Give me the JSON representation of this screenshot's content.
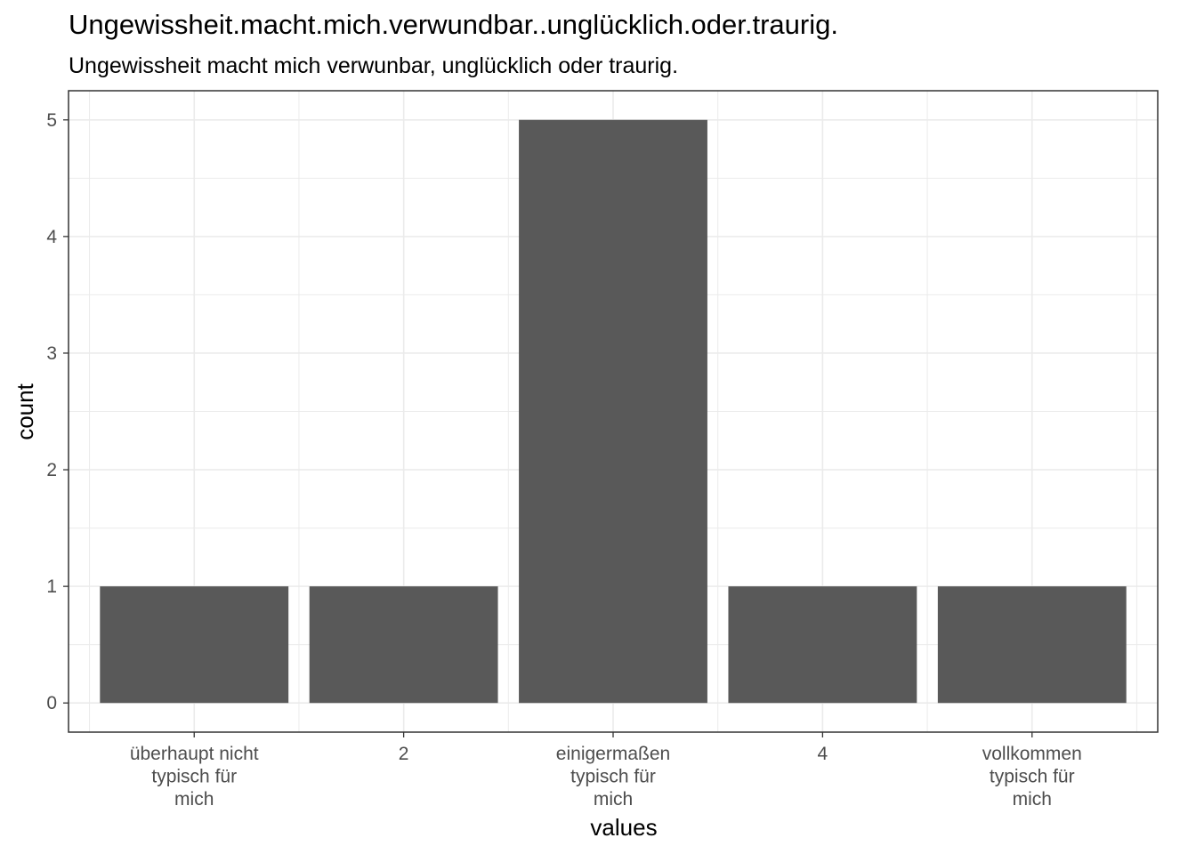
{
  "chart_data": {
    "type": "bar",
    "title": "Ungewissheit.macht.mich.verwundbar..unglücklich.oder.traurig.",
    "subtitle": "Ungewissheit macht mich verwunbar, unglücklich oder traurig.",
    "xlabel": "values",
    "ylabel": "count",
    "categories": [
      [
        "überhaupt nicht",
        "typisch für",
        "mich"
      ],
      [
        "2"
      ],
      [
        "einigermaßen",
        "typisch für",
        "mich"
      ],
      [
        "4"
      ],
      [
        "vollkommen",
        "typisch für",
        "mich"
      ]
    ],
    "values": [
      1,
      1,
      5,
      1,
      1
    ],
    "yticks": [
      "0",
      "1",
      "2",
      "3",
      "4",
      "5"
    ],
    "ylim": [
      -0.25,
      5.25
    ],
    "grid": true,
    "bar_color": "#595959",
    "grid_color": "#ebebeb",
    "panel_border_color": "#333333"
  }
}
